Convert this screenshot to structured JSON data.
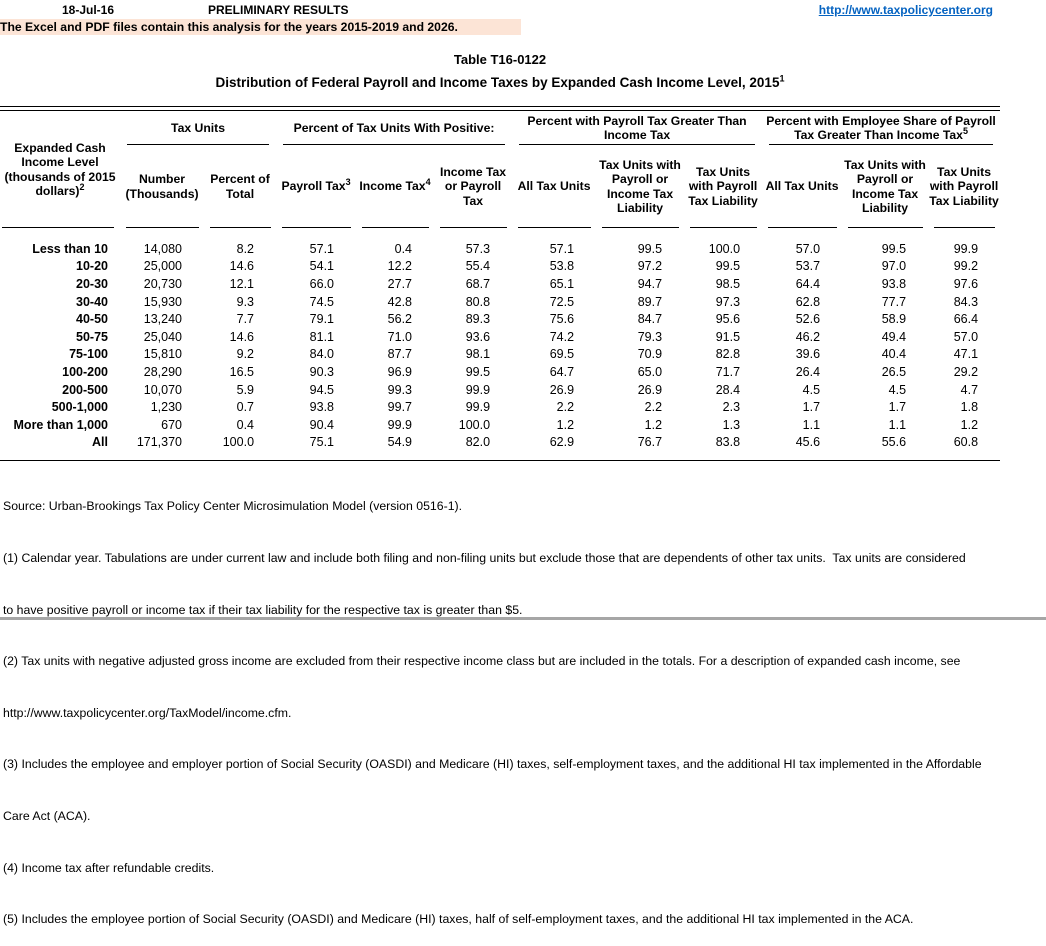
{
  "header": {
    "date": "18-Jul-16",
    "status": "PRELIMINARY RESULTS",
    "link": "http://www.taxpolicycenter.org",
    "banner": "The Excel and PDF files contain this analysis for the years 2015-2019 and 2026."
  },
  "title": {
    "table_number": "Table T16-0122",
    "subtitle": "Distribution of Federal Payroll and Income Taxes by Expanded Cash Income Level, 2015",
    "subtitle_sup": "1"
  },
  "table": {
    "stub_header": {
      "label": "Expanded Cash Income Level (thousands of 2015 dollars)",
      "sup": "2"
    },
    "groups": [
      {
        "label": "Tax Units"
      },
      {
        "label": "Percent of Tax Units With Positive:"
      },
      {
        "label": "Percent with Payroll Tax Greater Than Income Tax"
      },
      {
        "label": "Percent with Employee Share of Payroll Tax Greater Than Income Tax",
        "sup": "5"
      }
    ],
    "columns": [
      {
        "label": "Number (Thousands)"
      },
      {
        "label": "Percent of Total"
      },
      {
        "label": "Payroll Tax",
        "sup": "3"
      },
      {
        "label": "Income Tax",
        "sup": "4"
      },
      {
        "label": "Income Tax or Payroll Tax"
      },
      {
        "label": "All Tax Units"
      },
      {
        "label": "Tax Units with Payroll or Income Tax Liability"
      },
      {
        "label": "Tax Units with Payroll Tax Liability"
      },
      {
        "label": "All Tax Units"
      },
      {
        "label": "Tax Units with Payroll or Income Tax Liability"
      },
      {
        "label": "Tax Units with Payroll Tax Liability"
      }
    ],
    "rows": [
      {
        "label": "Less than 10",
        "values": [
          "14,080",
          "8.2",
          "57.1",
          "0.4",
          "57.3",
          "57.1",
          "99.5",
          "100.0",
          "57.0",
          "99.5",
          "99.9"
        ]
      },
      {
        "label": "10-20",
        "values": [
          "25,000",
          "14.6",
          "54.1",
          "12.2",
          "55.4",
          "53.8",
          "97.2",
          "99.5",
          "53.7",
          "97.0",
          "99.2"
        ]
      },
      {
        "label": "20-30",
        "values": [
          "20,730",
          "12.1",
          "66.0",
          "27.7",
          "68.7",
          "65.1",
          "94.7",
          "98.5",
          "64.4",
          "93.8",
          "97.6"
        ]
      },
      {
        "label": "30-40",
        "values": [
          "15,930",
          "9.3",
          "74.5",
          "42.8",
          "80.8",
          "72.5",
          "89.7",
          "97.3",
          "62.8",
          "77.7",
          "84.3"
        ]
      },
      {
        "label": "40-50",
        "values": [
          "13,240",
          "7.7",
          "79.1",
          "56.2",
          "89.3",
          "75.6",
          "84.7",
          "95.6",
          "52.6",
          "58.9",
          "66.4"
        ]
      },
      {
        "label": "50-75",
        "values": [
          "25,040",
          "14.6",
          "81.1",
          "71.0",
          "93.6",
          "74.2",
          "79.3",
          "91.5",
          "46.2",
          "49.4",
          "57.0"
        ]
      },
      {
        "label": "75-100",
        "values": [
          "15,810",
          "9.2",
          "84.0",
          "87.7",
          "98.1",
          "69.5",
          "70.9",
          "82.8",
          "39.6",
          "40.4",
          "47.1"
        ]
      },
      {
        "label": "100-200",
        "values": [
          "28,290",
          "16.5",
          "90.3",
          "96.9",
          "99.5",
          "64.7",
          "65.0",
          "71.7",
          "26.4",
          "26.5",
          "29.2"
        ]
      },
      {
        "label": "200-500",
        "values": [
          "10,070",
          "5.9",
          "94.5",
          "99.3",
          "99.9",
          "26.9",
          "26.9",
          "28.4",
          "4.5",
          "4.5",
          "4.7"
        ]
      },
      {
        "label": "500-1,000",
        "values": [
          "1,230",
          "0.7",
          "93.8",
          "99.7",
          "99.9",
          "2.2",
          "2.2",
          "2.3",
          "1.7",
          "1.7",
          "1.8"
        ]
      },
      {
        "label": "More than 1,000",
        "values": [
          "670",
          "0.4",
          "90.4",
          "99.9",
          "100.0",
          "1.2",
          "1.2",
          "1.3",
          "1.1",
          "1.1",
          "1.2"
        ]
      },
      {
        "label": "All",
        "values": [
          "171,370",
          "100.0",
          "75.1",
          "54.9",
          "82.0",
          "62.9",
          "76.7",
          "83.8",
          "45.6",
          "55.6",
          "60.8"
        ]
      }
    ]
  },
  "footer": {
    "lines": [
      "Source: Urban-Brookings Tax Policy Center Microsimulation Model (version 0516-1).",
      "(1) Calendar year. Tabulations are under current law and include both filing and non-filing units but exclude those that are dependents of other tax units.  Tax units are considered",
      "to have positive payroll or income tax if their tax liability for the respective tax is greater than $5.",
      "(2) Tax units with negative adjusted gross income are excluded from their respective income class but are included in the totals. For a description of expanded cash income, see",
      "http://www.taxpolicycenter.org/TaxModel/income.cfm.",
      "(3) Includes the employee and employer portion of Social Security (OASDI) and Medicare (HI) taxes, self-employment taxes, and the additional HI tax implemented in the Affordable",
      "Care Act (ACA).",
      "(4) Income tax after refundable credits.",
      "(5) Includes the employee portion of Social Security (OASDI) and Medicare (HI) taxes, half of self-employment taxes, and the additional HI tax implemented in the ACA."
    ]
  },
  "colors": {
    "banner_bg": "#FCE4D6",
    "link_blue": "#0563C1",
    "rule_black": "#000000",
    "bottom_bar_grey": "#A6A6A6"
  }
}
